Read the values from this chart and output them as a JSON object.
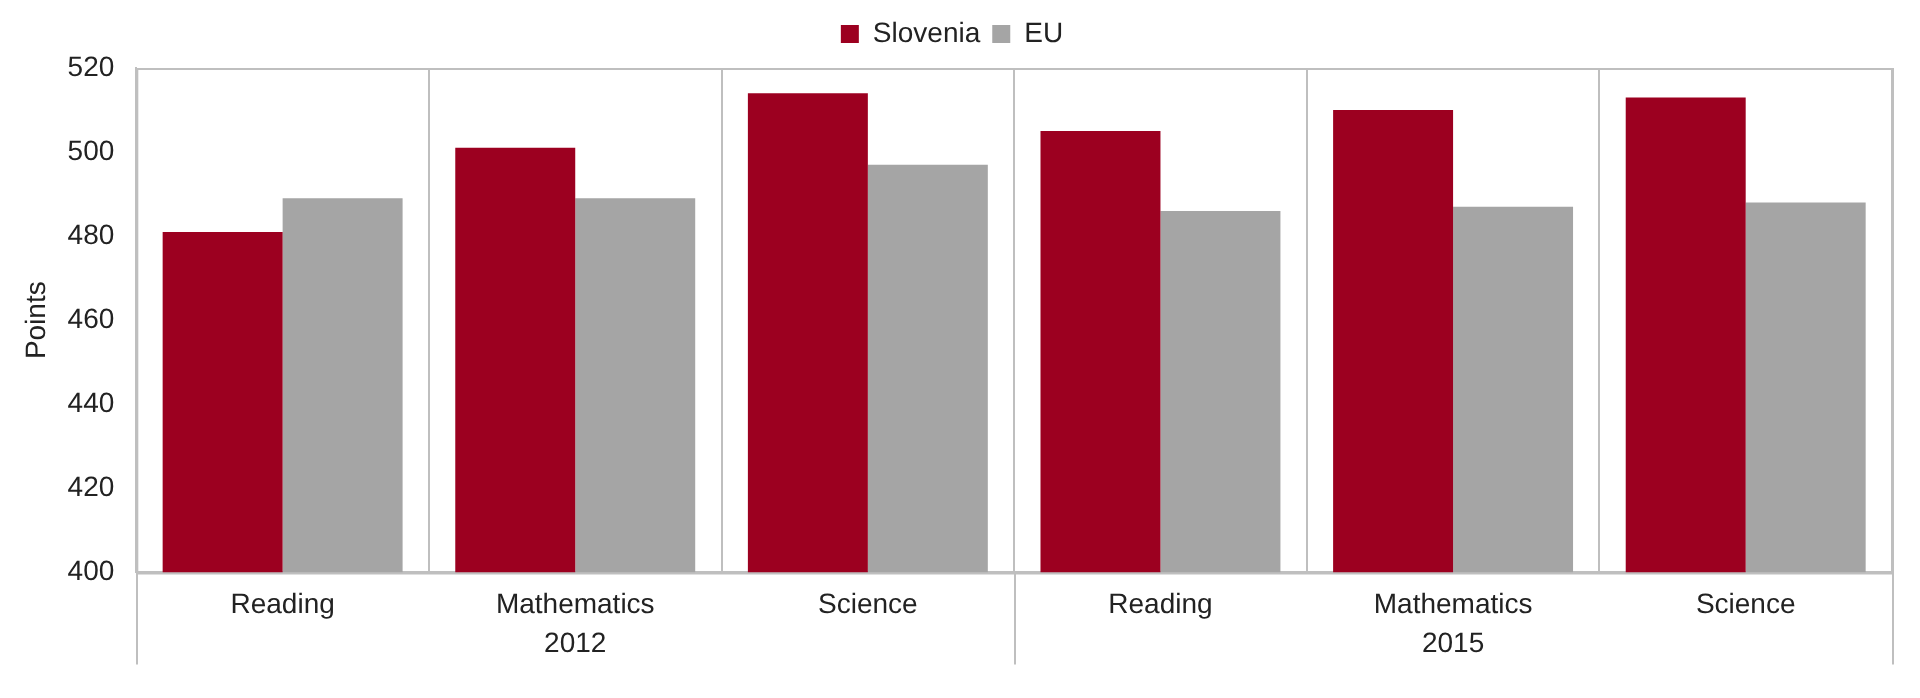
{
  "chart_data": {
    "type": "bar",
    "ylabel": "Points",
    "categories": [
      "Reading",
      "Mathematics",
      "Science",
      "Reading",
      "Mathematics",
      "Science"
    ],
    "series": [
      {
        "name": "Slovenia",
        "color": "#9c0020",
        "values": [
          481,
          501,
          514,
          505,
          510,
          513
        ]
      },
      {
        "name": "EU",
        "color": "#a5a5a5",
        "values": [
          489,
          489,
          497,
          486,
          487,
          488
        ]
      }
    ],
    "ylim": [
      400,
      520
    ],
    "yticks": [
      400,
      420,
      440,
      460,
      480,
      500,
      520
    ],
    "grid": "x",
    "legend": "top",
    "annotations": [
      "2012",
      "2015"
    ]
  }
}
